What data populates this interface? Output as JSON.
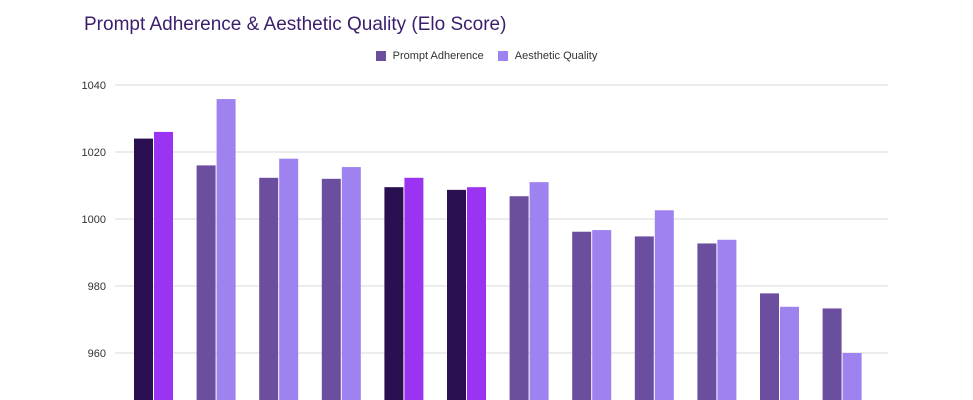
{
  "chart_data": {
    "type": "bar",
    "title": "Prompt Adherence & Aesthetic Quality (Elo Score)",
    "xlabel": "",
    "ylabel": "",
    "ylim": [
      950,
      1040
    ],
    "yticks": [
      960,
      980,
      1000,
      1020,
      1040
    ],
    "grid": true,
    "legend_position": "top-center",
    "categories": [
      "",
      "",
      "",
      "",
      "",
      "",
      "",
      "",
      "",
      "",
      "",
      ""
    ],
    "series": [
      {
        "name": "Prompt Adherence",
        "color": "#6b4f9e",
        "values": [
          1024,
          1016,
          1012.3,
          1012,
          1009.5,
          1008.7,
          1006.8,
          996.2,
          994.8,
          992.7,
          977.8,
          973.3
        ]
      },
      {
        "name": "Aesthetic Quality",
        "color": "#9d82f0",
        "values": [
          1026,
          1035.8,
          1018,
          1015.5,
          1012.3,
          1009.5,
          1011,
          996.7,
          1002.6,
          993.8,
          973.8,
          960
        ]
      }
    ],
    "highlight": {
      "indices": [
        0,
        4,
        5
      ],
      "colors": [
        "#2a1050",
        "#9b34f2"
      ]
    }
  }
}
